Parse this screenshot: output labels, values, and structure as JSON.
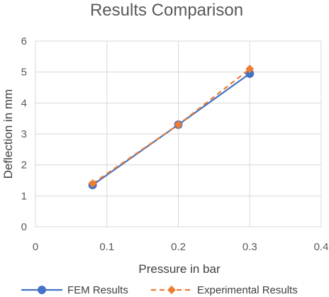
{
  "chart_data": {
    "type": "line",
    "title": "Results Comparison",
    "xlabel": "Pressure in bar",
    "ylabel": "Deflection in mm",
    "xlim": [
      0,
      0.4
    ],
    "ylim": [
      0,
      6
    ],
    "x_ticks": [
      "0",
      "0.1",
      "0.2",
      "0.3",
      "0.4"
    ],
    "y_ticks": [
      "0",
      "1",
      "2",
      "3",
      "4",
      "5",
      "6"
    ],
    "grid": true,
    "legend_position": "bottom",
    "series": [
      {
        "name": "FEM Results",
        "color": "#4472C4",
        "line_style": "solid",
        "marker": "circle",
        "points": [
          {
            "x": 0.08,
            "y": 1.35
          },
          {
            "x": 0.2,
            "y": 3.3
          },
          {
            "x": 0.3,
            "y": 4.95
          }
        ]
      },
      {
        "name": "Experimental Results",
        "color": "#ED7D31",
        "line_style": "dashed",
        "marker": "diamond",
        "points": [
          {
            "x": 0.08,
            "y": 1.4
          },
          {
            "x": 0.2,
            "y": 3.3
          },
          {
            "x": 0.3,
            "y": 5.1
          }
        ]
      }
    ]
  }
}
